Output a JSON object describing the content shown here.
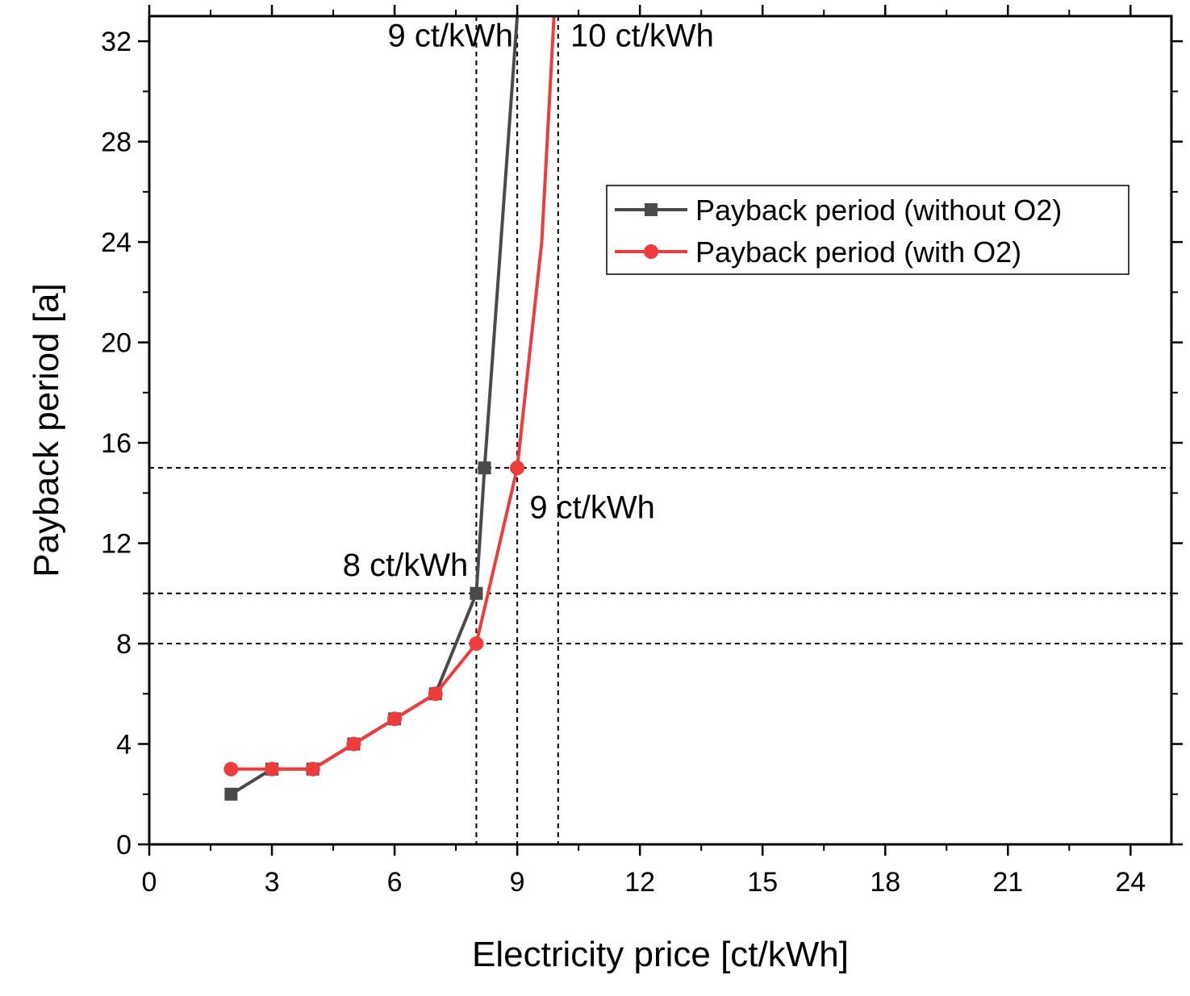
{
  "chart_data": {
    "type": "line",
    "title": "",
    "xlabel": "Electricity price [ct/kWh]",
    "ylabel": "Payback period [a]",
    "xlim": [
      0,
      25
    ],
    "ylim": [
      0,
      33
    ],
    "xticks": [
      0,
      3,
      6,
      9,
      12,
      15,
      18,
      21,
      24
    ],
    "xtick_labels": [
      "0",
      "3",
      "6",
      "9",
      "12",
      "15",
      "18",
      "21",
      "24"
    ],
    "yticks": [
      0,
      4,
      8,
      12,
      16,
      20,
      24,
      28,
      32
    ],
    "ytick_labels": [
      "0",
      "4",
      "8",
      "12",
      "16",
      "20",
      "24",
      "28",
      "32"
    ],
    "grid": false,
    "legend_position": "top-right",
    "series": [
      {
        "name": "Payback period (without O2)",
        "color": "#4a4a4a",
        "marker": "square",
        "x": [
          2,
          3,
          4,
          5,
          6,
          7,
          8,
          8.2,
          9
        ],
        "y": [
          2,
          3,
          3,
          4,
          5,
          6,
          10,
          15,
          33
        ]
      },
      {
        "name": "Payback period (with O2)",
        "color": "#ee3b3b",
        "marker": "circle",
        "x": [
          2,
          3,
          4,
          5,
          6,
          7,
          8,
          9,
          9.6,
          9.9
        ],
        "y": [
          3,
          3,
          3,
          4,
          5,
          6,
          8,
          15,
          24,
          33
        ]
      }
    ],
    "reference_lines": {
      "horizontal": [
        8,
        10,
        15
      ],
      "vertical": [
        8,
        9,
        10
      ]
    },
    "annotations": [
      {
        "text": "9 ct/kWh",
        "x": 8.9,
        "y": 31.8,
        "anchor": "end"
      },
      {
        "text": "10 ct/kWh",
        "x": 10.3,
        "y": 31.8,
        "anchor": "start"
      },
      {
        "text": "9 ct/kWh",
        "x": 9.3,
        "y": 13.0,
        "anchor": "start"
      },
      {
        "text": "8 ct/kWh",
        "x": 7.8,
        "y": 10.7,
        "anchor": "end"
      }
    ]
  }
}
